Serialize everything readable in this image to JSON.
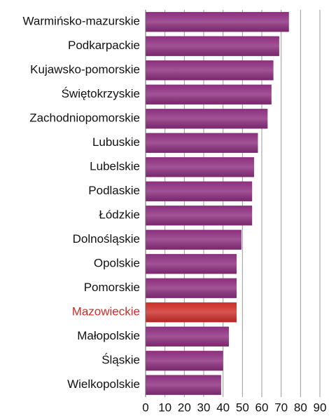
{
  "chart_data": {
    "type": "barh",
    "categories": [
      "Warmińsko-mazurskie",
      "Podkarpackie",
      "Kujawsko-pomorskie",
      "Świętokrzyskie",
      "Zachodniopomorskie",
      "Lubuskie",
      "Lubelskie",
      "Podlaskie",
      "Łódzkie",
      "Dolnośląskie",
      "Opolskie",
      "Pomorskie",
      "Mazowieckie",
      "Małopolskie",
      "Śląskie",
      "Wielkopolskie"
    ],
    "values": [
      74,
      69,
      66,
      65,
      63,
      58,
      56,
      55,
      55,
      49.5,
      47,
      47,
      47,
      43,
      40,
      39
    ],
    "colors": [
      "#8c2e7e",
      "#8c2e7e",
      "#8c2e7e",
      "#8c2e7e",
      "#8c2e7e",
      "#8c2e7e",
      "#8c2e7e",
      "#8c2e7e",
      "#8c2e7e",
      "#8c2e7e",
      "#8c2e7e",
      "#8c2e7e",
      "#cc2f2a",
      "#8c2e7e",
      "#8c2e7e",
      "#8c2e7e"
    ],
    "xlim": [
      0,
      90
    ],
    "xticks": [
      0,
      10,
      20,
      30,
      40,
      50,
      60,
      70,
      80,
      90
    ],
    "grid": true
  }
}
